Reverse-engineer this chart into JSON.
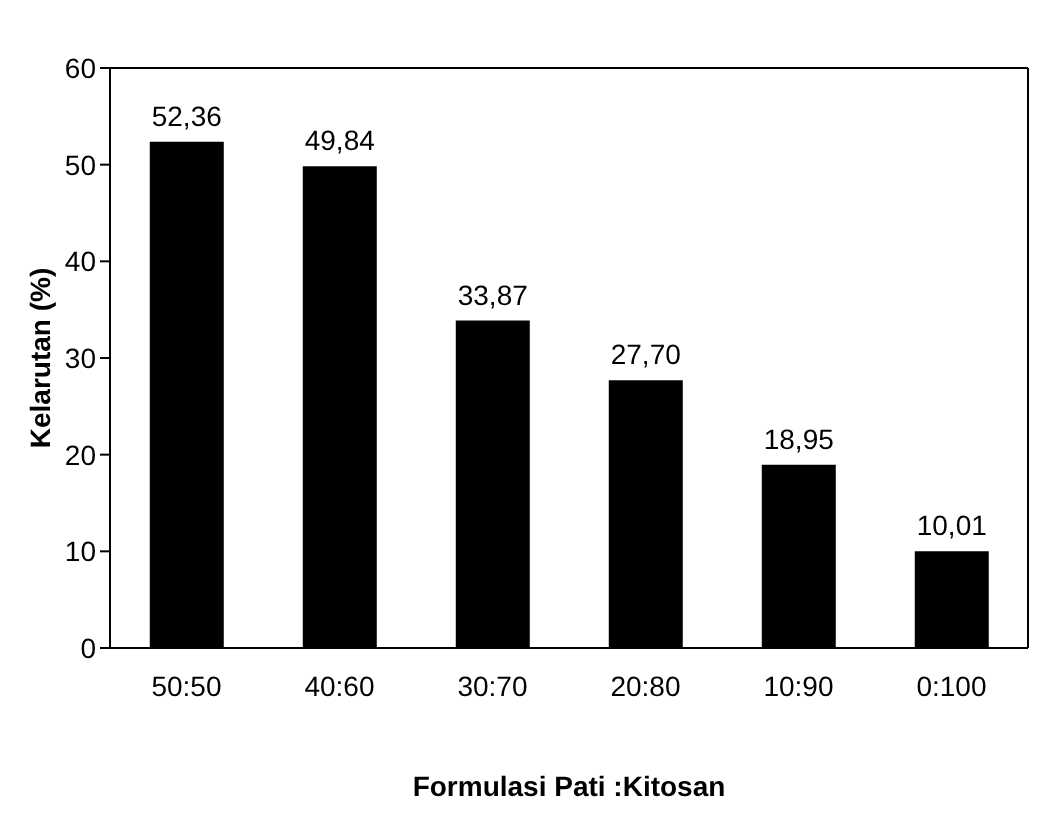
{
  "chart_data": {
    "type": "bar",
    "xlabel": "Formulasi Pati :Kitosan",
    "ylabel": "Kelarutan (%)",
    "categories": [
      "50:50",
      "40:60",
      "30:70",
      "20:80",
      "10:90",
      "0:100"
    ],
    "values": [
      52.36,
      49.84,
      33.87,
      27.7,
      18.95,
      10.01
    ],
    "value_labels": [
      "52,36",
      "49,84",
      "33,87",
      "27,70",
      "18,95",
      "10,01"
    ],
    "color": "#000000",
    "ylim": [
      0,
      60
    ],
    "yticks": [
      0,
      10,
      20,
      30,
      40,
      50,
      60
    ],
    "grid": false
  }
}
